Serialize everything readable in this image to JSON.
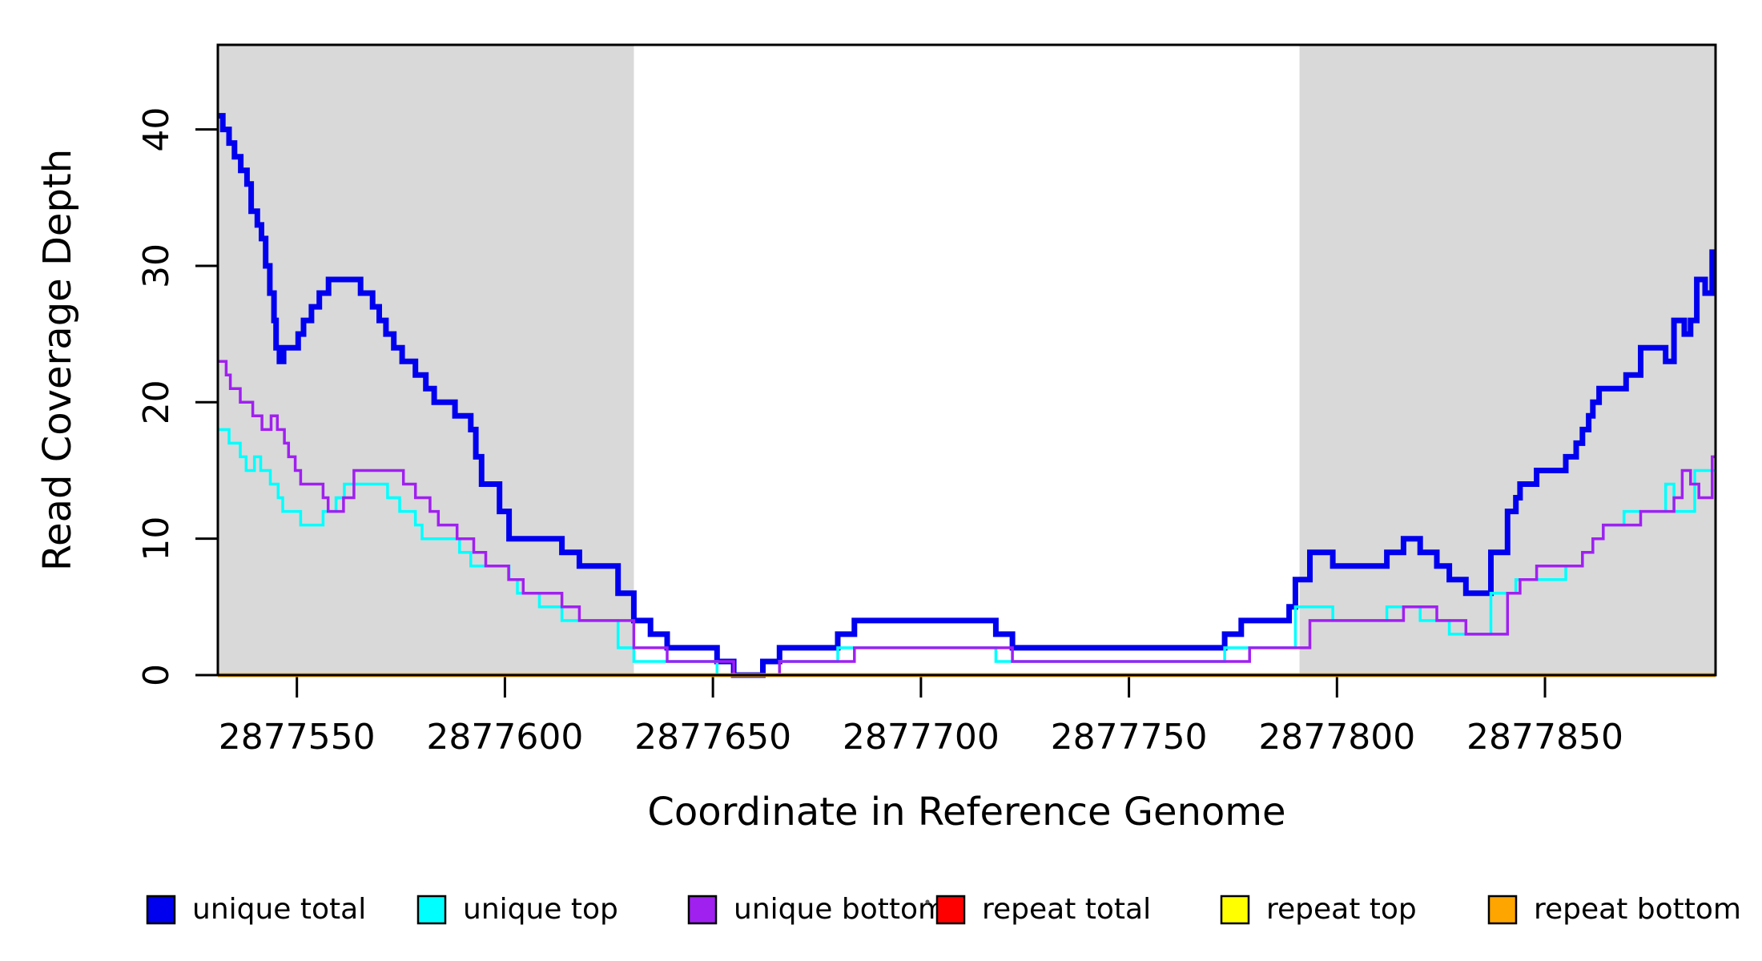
{
  "chart_data": {
    "type": "line",
    "subtype": "step-coverage-plot",
    "title": "",
    "xlabel": "Coordinate in Reference Genome",
    "ylabel": "Read Coverage Depth",
    "xlim": [
      2877531,
      2877891
    ],
    "ylim": [
      0,
      46.2
    ],
    "x_ticks": [
      2877550,
      2877600,
      2877650,
      2877700,
      2877750,
      2877800,
      2877850
    ],
    "x_tick_labels": [
      "2877550",
      "2877600",
      "2877650",
      "2877700",
      "2877750",
      "2877800",
      "2877850"
    ],
    "y_ticks": [
      0,
      10,
      20,
      30,
      40
    ],
    "y_tick_labels": [
      "0",
      "10",
      "20",
      "30",
      "40"
    ],
    "grid": false,
    "plot_background": "#ffffff",
    "box_color": "#000000",
    "legend_position": "bottom",
    "shaded_regions": [
      {
        "name": "left-repeat-flank",
        "x0": 2877531,
        "x1": 2877631,
        "color": "#D9D9D9"
      },
      {
        "name": "right-repeat-flank",
        "x0": 2877791,
        "x1": 2877891,
        "color": "#D9D9D9"
      }
    ],
    "series": [
      {
        "name": "unique total",
        "color": "#0000EE",
        "width": 7,
        "points": [
          [
            2877531,
            41
          ],
          [
            2877532.2,
            40
          ],
          [
            2877533.7,
            39
          ],
          [
            2877535,
            38
          ],
          [
            2877536.5,
            37
          ],
          [
            2877538,
            36
          ],
          [
            2877539,
            34
          ],
          [
            2877540.5,
            33
          ],
          [
            2877541.5,
            32
          ],
          [
            2877542.5,
            30
          ],
          [
            2877543.5,
            28
          ],
          [
            2877544.5,
            26
          ],
          [
            2877545,
            24
          ],
          [
            2877545.8,
            23
          ],
          [
            2877546.8,
            24
          ],
          [
            2877550.3,
            25
          ],
          [
            2877551.6,
            26
          ],
          [
            2877553.5,
            27
          ],
          [
            2877555.4,
            28
          ],
          [
            2877557.6,
            29
          ],
          [
            2877565.3,
            28
          ],
          [
            2877568.2,
            27
          ],
          [
            2877569.8,
            26
          ],
          [
            2877571.4,
            25
          ],
          [
            2877573.3,
            24
          ],
          [
            2877575.3,
            23
          ],
          [
            2877578.5,
            22
          ],
          [
            2877581,
            21
          ],
          [
            2877583,
            20
          ],
          [
            2877588,
            19
          ],
          [
            2877591.8,
            18
          ],
          [
            2877593,
            16
          ],
          [
            2877594.4,
            14
          ],
          [
            2877598.7,
            12
          ],
          [
            2877601,
            10
          ],
          [
            2877613.7,
            9
          ],
          [
            2877617.9,
            8
          ],
          [
            2877627.2,
            6
          ],
          [
            2877631,
            4
          ],
          [
            2877635,
            3
          ],
          [
            2877639,
            2
          ],
          [
            2877651,
            1
          ],
          [
            2877655,
            0
          ],
          [
            2877662,
            1
          ],
          [
            2877666,
            2
          ],
          [
            2877680,
            3
          ],
          [
            2877684,
            4
          ],
          [
            2877718,
            3
          ],
          [
            2877722,
            2
          ],
          [
            2877773,
            3
          ],
          [
            2877777,
            4
          ],
          [
            2877788.5,
            5
          ],
          [
            2877790,
            7
          ],
          [
            2877793.5,
            9
          ],
          [
            2877799,
            8
          ],
          [
            2877812,
            9
          ],
          [
            2877816,
            10
          ],
          [
            2877820,
            9
          ],
          [
            2877824,
            8
          ],
          [
            2877827,
            7
          ],
          [
            2877831,
            6
          ],
          [
            2877837,
            9
          ],
          [
            2877841,
            12
          ],
          [
            2877843,
            13
          ],
          [
            2877844,
            14
          ],
          [
            2877848,
            15
          ],
          [
            2877855,
            16
          ],
          [
            2877857.5,
            17
          ],
          [
            2877859,
            18
          ],
          [
            2877860.5,
            19
          ],
          [
            2877861.5,
            20
          ],
          [
            2877863,
            21
          ],
          [
            2877869.5,
            22
          ],
          [
            2877873,
            24
          ],
          [
            2877879,
            23
          ],
          [
            2877881,
            26
          ],
          [
            2877883.5,
            25
          ],
          [
            2877885,
            26
          ],
          [
            2877886.5,
            29
          ],
          [
            2877888.5,
            28
          ],
          [
            2877890.2,
            31
          ]
        ]
      },
      {
        "name": "unique top",
        "color": "#00FFFF",
        "width": 3.5,
        "points": [
          [
            2877531,
            18
          ],
          [
            2877533.7,
            17
          ],
          [
            2877536.4,
            16
          ],
          [
            2877537.8,
            15
          ],
          [
            2877539.8,
            16
          ],
          [
            2877541.3,
            15
          ],
          [
            2877543.6,
            14
          ],
          [
            2877545.5,
            13
          ],
          [
            2877546.6,
            12
          ],
          [
            2877550.9,
            11
          ],
          [
            2877556.3,
            12
          ],
          [
            2877559.4,
            13
          ],
          [
            2877561.4,
            14
          ],
          [
            2877571.8,
            13
          ],
          [
            2877574.7,
            12
          ],
          [
            2877578.5,
            11
          ],
          [
            2877580.1,
            10
          ],
          [
            2877589.1,
            9
          ],
          [
            2877591.8,
            8
          ],
          [
            2877601,
            7
          ],
          [
            2877603,
            6
          ],
          [
            2877608.3,
            5
          ],
          [
            2877613.7,
            4
          ],
          [
            2877627.2,
            2
          ],
          [
            2877631,
            1
          ],
          [
            2877651,
            0
          ],
          [
            2877666,
            1
          ],
          [
            2877680,
            2
          ],
          [
            2877718,
            1
          ],
          [
            2877773,
            2
          ],
          [
            2877790,
            5
          ],
          [
            2877799,
            4
          ],
          [
            2877812,
            5
          ],
          [
            2877820,
            4
          ],
          [
            2877827,
            3
          ],
          [
            2877837,
            6
          ],
          [
            2877843,
            7
          ],
          [
            2877855,
            8
          ],
          [
            2877859,
            9
          ],
          [
            2877861.5,
            10
          ],
          [
            2877864,
            11
          ],
          [
            2877869,
            12
          ],
          [
            2877879,
            14
          ],
          [
            2877881,
            12
          ],
          [
            2877886,
            15
          ]
        ]
      },
      {
        "name": "unique bottom",
        "color": "#A020F0",
        "width": 3.5,
        "points": [
          [
            2877531,
            23
          ],
          [
            2877533,
            22
          ],
          [
            2877534,
            21
          ],
          [
            2877536.4,
            20
          ],
          [
            2877539.4,
            19
          ],
          [
            2877541.6,
            18
          ],
          [
            2877543.8,
            19
          ],
          [
            2877545.3,
            18
          ],
          [
            2877547,
            17
          ],
          [
            2877548,
            16
          ],
          [
            2877549.6,
            15
          ],
          [
            2877550.9,
            14
          ],
          [
            2877556.3,
            13
          ],
          [
            2877557.5,
            12
          ],
          [
            2877561.2,
            13
          ],
          [
            2877563.7,
            15
          ],
          [
            2877575.6,
            14
          ],
          [
            2877578.5,
            13
          ],
          [
            2877582,
            12
          ],
          [
            2877584,
            11
          ],
          [
            2877588.5,
            10
          ],
          [
            2877592.5,
            9
          ],
          [
            2877595.4,
            8
          ],
          [
            2877600.9,
            7
          ],
          [
            2877604.4,
            6
          ],
          [
            2877613.7,
            5
          ],
          [
            2877617.9,
            4
          ],
          [
            2877631,
            2
          ],
          [
            2877639,
            1
          ],
          [
            2877655,
            0
          ],
          [
            2877666,
            1
          ],
          [
            2877684,
            2
          ],
          [
            2877722,
            1
          ],
          [
            2877779,
            2
          ],
          [
            2877793.5,
            4
          ],
          [
            2877816,
            5
          ],
          [
            2877824,
            4
          ],
          [
            2877831,
            3
          ],
          [
            2877841,
            6
          ],
          [
            2877844,
            7
          ],
          [
            2877848,
            8
          ],
          [
            2877859,
            9
          ],
          [
            2877861.5,
            10
          ],
          [
            2877864,
            11
          ],
          [
            2877873,
            12
          ],
          [
            2877881,
            13
          ],
          [
            2877883,
            15
          ],
          [
            2877885,
            14
          ],
          [
            2877887,
            13
          ],
          [
            2877890.2,
            16
          ]
        ]
      },
      {
        "name": "repeat total",
        "color": "#FF0000",
        "width": 3.5,
        "points": [
          [
            2877531,
            0
          ]
        ]
      },
      {
        "name": "repeat top",
        "color": "#FFFF00",
        "width": 3.5,
        "points": [
          [
            2877531,
            0
          ]
        ]
      },
      {
        "name": "repeat bottom",
        "color": "#FFA500",
        "width": 5,
        "points": [
          [
            2877531,
            0
          ]
        ]
      }
    ]
  }
}
